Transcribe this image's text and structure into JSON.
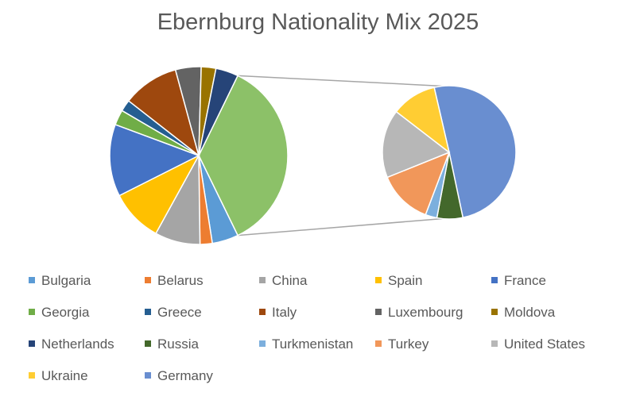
{
  "chart_data": {
    "type": "pie",
    "subtype": "pie-of-pie",
    "title": "Ebernburg Nationality Mix 2025",
    "legend_placement": "bottom",
    "slices": [
      {
        "label": "Bulgaria",
        "value": 4.3,
        "color": "#5b9bd5",
        "plot": "main"
      },
      {
        "label": "Belarus",
        "value": 2.0,
        "color": "#ed7d31",
        "plot": "main"
      },
      {
        "label": "China",
        "value": 7.4,
        "color": "#a5a5a5",
        "plot": "main"
      },
      {
        "label": "Spain",
        "value": 8.6,
        "color": "#ffc000",
        "plot": "main"
      },
      {
        "label": "France",
        "value": 11.8,
        "color": "#4472c4",
        "plot": "main"
      },
      {
        "label": "Georgia",
        "value": 2.5,
        "color": "#70ad47",
        "plot": "main"
      },
      {
        "label": "Greece",
        "value": 1.9,
        "color": "#255e91",
        "plot": "main"
      },
      {
        "label": "Italy",
        "value": 9.2,
        "color": "#9e480e",
        "plot": "main"
      },
      {
        "label": "Luxembourg",
        "value": 4.2,
        "color": "#636363",
        "plot": "main"
      },
      {
        "label": "Moldova",
        "value": 2.4,
        "color": "#997300",
        "plot": "main"
      },
      {
        "label": "Netherlands",
        "value": 3.7,
        "color": "#264478",
        "plot": "main"
      },
      {
        "label": "Russia",
        "value": 2.0,
        "color": "#43682b",
        "plot": "secondary"
      },
      {
        "label": "Turkmenistan",
        "value": 0.9,
        "color": "#7cafdd",
        "plot": "secondary"
      },
      {
        "label": "Turkey",
        "value": 4.2,
        "color": "#f1975a",
        "plot": "secondary"
      },
      {
        "label": "United States",
        "value": 5.3,
        "color": "#b7b7b7",
        "plot": "secondary"
      },
      {
        "label": "Ukraine",
        "value": 3.5,
        "color": "#ffcd33",
        "plot": "secondary"
      },
      {
        "label": "Germany",
        "value": 16.1,
        "color": "#698ed0",
        "plot": "secondary"
      }
    ],
    "other_slice_color": "#8cc168"
  }
}
